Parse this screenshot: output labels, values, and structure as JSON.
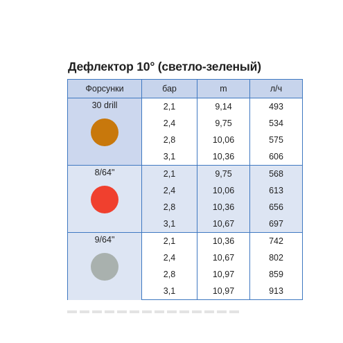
{
  "title": "Дефлектор 10° (светло-зеленый)",
  "table": {
    "headers": [
      "Форсунки",
      "бар",
      "m",
      "л/ч"
    ],
    "groups": [
      {
        "nozzle": "30 drill",
        "color": "#c8780c",
        "rows": [
          {
            "bar": "2,1",
            "m": "9,14",
            "lph": "493"
          },
          {
            "bar": "2,4",
            "m": "9,75",
            "lph": "534"
          },
          {
            "bar": "2,8",
            "m": "10,06",
            "lph": "575"
          },
          {
            "bar": "3,1",
            "m": "10,36",
            "lph": "606"
          }
        ]
      },
      {
        "nozzle": "8/64\"",
        "color": "#f0402e",
        "rows": [
          {
            "bar": "2,1",
            "m": "9,75",
            "lph": "568"
          },
          {
            "bar": "2,4",
            "m": "10,06",
            "lph": "613"
          },
          {
            "bar": "2,8",
            "m": "10,36",
            "lph": "656"
          },
          {
            "bar": "3,1",
            "m": "10,67",
            "lph": "697"
          }
        ]
      },
      {
        "nozzle": "9/64\"",
        "color": "#a9b1ae",
        "rows": [
          {
            "bar": "2,1",
            "m": "10,36",
            "lph": "742"
          },
          {
            "bar": "2,4",
            "m": "10,67",
            "lph": "802"
          },
          {
            "bar": "2,8",
            "m": "10,97",
            "lph": "859"
          },
          {
            "bar": "3,1",
            "m": "10,97",
            "lph": "913"
          }
        ]
      }
    ]
  },
  "colors": {
    "border": "#3e78c1",
    "header_bg": "#c7d4ec",
    "shaded_bg": "#dde5f3"
  }
}
